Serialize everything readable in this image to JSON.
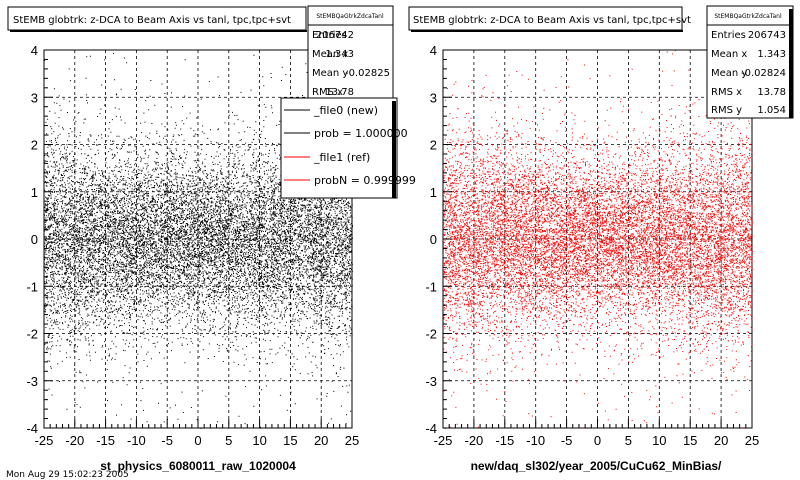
{
  "footer_date": "Mon Aug 29 15:02:23 2005",
  "legend": {
    "entries": [
      {
        "label": "_file0 (new)",
        "color": "#000000"
      },
      {
        "label": "prob = 1.000000",
        "color": "#000000"
      },
      {
        "label": "_file1 (ref)",
        "color": "#ff0000"
      },
      {
        "label": "probN = 0.999999",
        "color": "#ff0000"
      }
    ]
  },
  "chart_data": [
    {
      "type": "scatter",
      "title": "StEMB globtrk: z-DCA to Beam Axis vs tanl, tpc,tpc+svt",
      "xlabel": "st_physics_6080011_raw_1020004",
      "ylabel": "",
      "xlim": [
        -25,
        25
      ],
      "ylim": [
        -4,
        4
      ],
      "xticks": [
        -25,
        -20,
        -15,
        -10,
        -5,
        0,
        5,
        10,
        15,
        20,
        25
      ],
      "yticks": [
        -4,
        -3,
        -2,
        -1,
        0,
        1,
        2,
        3,
        4
      ],
      "grid": true,
      "color": "#000000",
      "stats": {
        "name": "StEMBQaGtrkZdcaTanl",
        "rows": [
          {
            "label": "Entries",
            "value": "206742"
          },
          {
            "label": "Mean x",
            "value": "1.343"
          },
          {
            "label": "Mean y",
            "value": "-0.02825"
          },
          {
            "label": "RMS x",
            "value": "13.78"
          }
        ]
      },
      "series": [
        {
          "points": [
            [
              -24,
              0.1
            ],
            [
              -20,
              -0.3
            ],
            [
              -15,
              0.5
            ],
            [
              -10,
              -0.2
            ],
            [
              -5,
              0.0
            ],
            [
              0,
              0.2
            ],
            [
              5,
              -0.4
            ],
            [
              10,
              0.3
            ],
            [
              15,
              -0.1
            ],
            [
              20,
              0.4
            ],
            [
              24,
              -0.2
            ]
          ]
        }
      ]
    },
    {
      "type": "scatter",
      "title": "StEMB globtrk: z-DCA to Beam Axis vs tanl, tpc,tpc+svt",
      "xlabel": "new/daq_sl302/year_2005/CuCu62_MinBias/",
      "ylabel": "",
      "xlim": [
        -25,
        25
      ],
      "ylim": [
        -4,
        4
      ],
      "xticks": [
        -25,
        -20,
        -15,
        -10,
        -5,
        0,
        5,
        10,
        15,
        20,
        25
      ],
      "yticks": [
        -4,
        -3,
        -2,
        -1,
        0,
        1,
        2,
        3,
        4
      ],
      "grid": true,
      "color": "#ff0000",
      "stats": {
        "name": "StEMBQaGtrkZdcaTanl",
        "rows": [
          {
            "label": "Entries",
            "value": "206743"
          },
          {
            "label": "Mean x",
            "value": "1.343"
          },
          {
            "label": "Mean y",
            "value": "-0.02824"
          },
          {
            "label": "RMS x",
            "value": "13.78"
          },
          {
            "label": "RMS y",
            "value": "1.054"
          }
        ]
      },
      "series": [
        {
          "points": [
            [
              -24,
              -0.1
            ],
            [
              -20,
              0.3
            ],
            [
              -15,
              -0.5
            ],
            [
              -10,
              0.2
            ],
            [
              -5,
              0.0
            ],
            [
              0,
              -0.2
            ],
            [
              5,
              0.4
            ],
            [
              10,
              -0.3
            ],
            [
              15,
              0.1
            ],
            [
              20,
              -0.4
            ],
            [
              24,
              0.2
            ]
          ]
        }
      ]
    }
  ]
}
